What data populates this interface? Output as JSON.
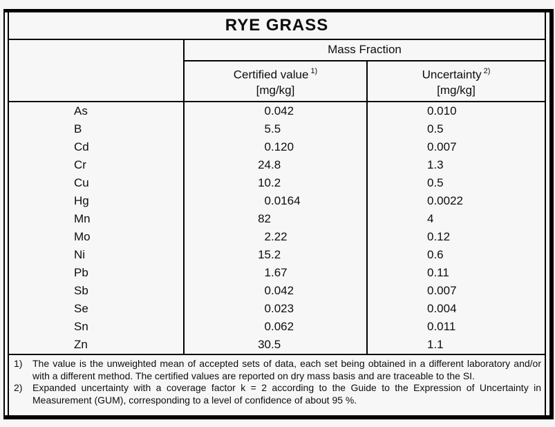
{
  "title": "RYE GRASS",
  "colors": {
    "border": "#000000",
    "background": "#f6f6f6",
    "text": "#0d0d0d"
  },
  "table": {
    "group_header": "Mass Fraction",
    "col_certified": {
      "label": "Certified value",
      "sup": "1)",
      "unit": "[mg/kg]"
    },
    "col_uncertainty": {
      "label": "Uncertainty",
      "sup": "2)",
      "unit": "[mg/kg]"
    },
    "rows": [
      {
        "element": "As",
        "certified": "0.042",
        "uncertainty": "0.010"
      },
      {
        "element": "B",
        "certified": "5.5",
        "uncertainty": "0.5"
      },
      {
        "element": "Cd",
        "certified": "0.120",
        "uncertainty": "0.007"
      },
      {
        "element": "Cr",
        "certified": "24.8",
        "uncertainty": "1.3"
      },
      {
        "element": "Cu",
        "certified": "10.2",
        "uncertainty": "0.5"
      },
      {
        "element": "Hg",
        "certified": "0.0164",
        "uncertainty": "0.0022"
      },
      {
        "element": "Mn",
        "certified": "82",
        "uncertainty": "4"
      },
      {
        "element": "Mo",
        "certified": "2.22",
        "uncertainty": "0.12"
      },
      {
        "element": "Ni",
        "certified": "15.2",
        "uncertainty": "0.6"
      },
      {
        "element": "Pb",
        "certified": "1.67",
        "uncertainty": "0.11"
      },
      {
        "element": "Sb",
        "certified": "0.042",
        "uncertainty": "0.007"
      },
      {
        "element": "Se",
        "certified": "0.023",
        "uncertainty": "0.004"
      },
      {
        "element": "Sn",
        "certified": "0.062",
        "uncertainty": "0.011"
      },
      {
        "element": "Zn",
        "certified": "30.5",
        "uncertainty": "1.1"
      }
    ]
  },
  "footnotes": [
    {
      "marker": "1)",
      "text": "The value is the unweighted mean of accepted sets of data, each set being obtained in a different laboratory and/or with a different method. The certified values are reported on dry mass basis and are traceable to the SI."
    },
    {
      "marker": "2)",
      "text": "Expanded uncertainty with a coverage factor k = 2 according to the Guide to the Expression of Uncertainty in Measurement (GUM), corresponding to a level of confidence of about 95 %."
    }
  ]
}
